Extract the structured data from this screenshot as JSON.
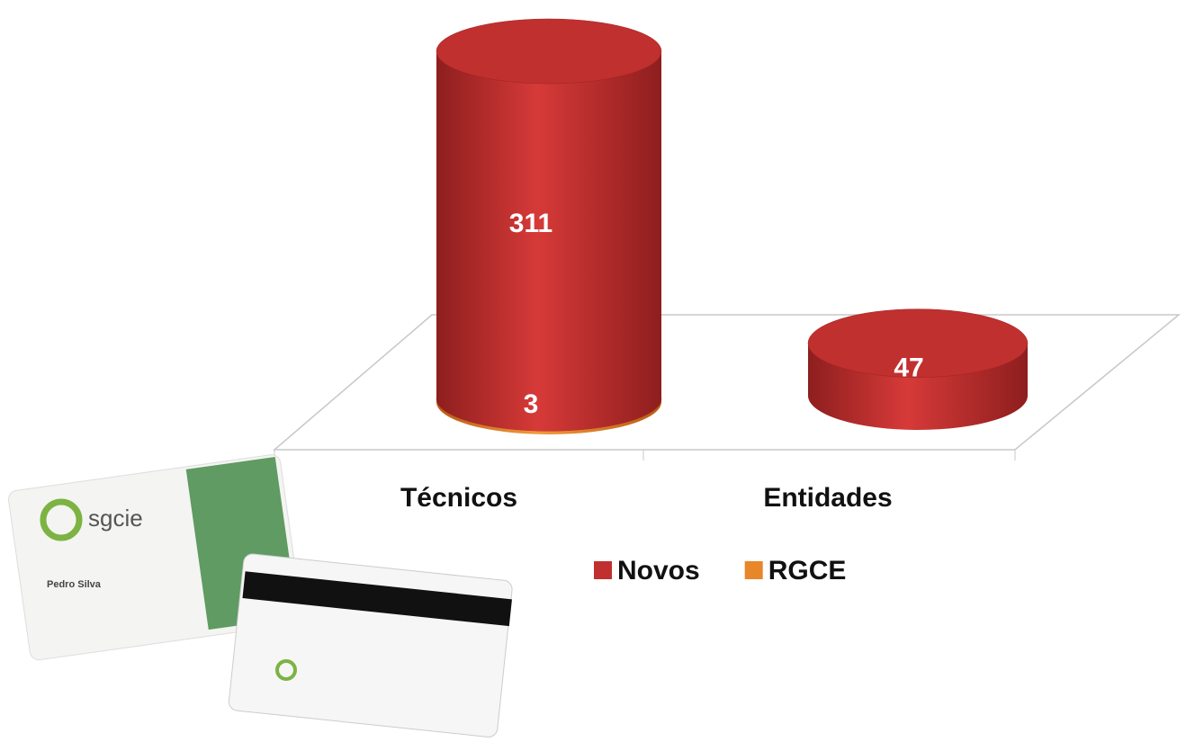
{
  "chart_data": {
    "type": "cylinder-stacked-bar",
    "categories": [
      "Técnicos",
      "Entidades"
    ],
    "series": [
      {
        "name": "Novos",
        "color": "#c0302f",
        "values": [
          311,
          47
        ]
      },
      {
        "name": "RGCE",
        "color": "#e8862a",
        "values": [
          3,
          null
        ]
      }
    ],
    "grid": false
  },
  "illustration": {
    "card_texts": [
      "sgcie",
      "Pedro Silva"
    ]
  }
}
